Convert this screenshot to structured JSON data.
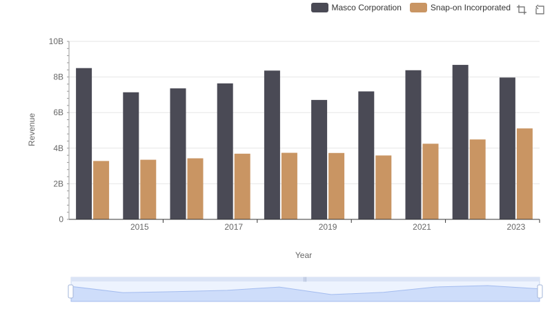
{
  "legend": {
    "items": [
      {
        "label": "Masco Corporation",
        "color": "#4a4a55"
      },
      {
        "label": "Snap-on Incorporated",
        "color": "#c99563"
      }
    ]
  },
  "toolbox": {
    "icons": [
      "zoom-icon",
      "restore-icon"
    ]
  },
  "chart_data": {
    "type": "bar",
    "categories": [
      "2014",
      "2015",
      "2016",
      "2017",
      "2018",
      "2019",
      "2020",
      "2021",
      "2022",
      "2023"
    ],
    "x_tick_labels": [
      "2015",
      "2017",
      "2019",
      "2021",
      "2023"
    ],
    "series": [
      {
        "name": "Masco Corporation",
        "values": [
          8.5,
          7.14,
          7.36,
          7.64,
          8.36,
          6.71,
          7.19,
          8.38,
          8.68,
          7.97
        ]
      },
      {
        "name": "Snap-on Incorporated",
        "values": [
          3.28,
          3.35,
          3.43,
          3.69,
          3.74,
          3.73,
          3.59,
          4.25,
          4.49,
          5.11
        ]
      }
    ],
    "ylim": [
      0,
      10
    ],
    "y_ticks": [
      "0",
      "2B",
      "4B",
      "6B",
      "8B",
      "10B"
    ],
    "xlabel": "Year",
    "ylabel": "Revenue",
    "grid": true,
    "legend_position": "top-right",
    "data_zoom": {
      "start": 0,
      "end": 100
    }
  }
}
